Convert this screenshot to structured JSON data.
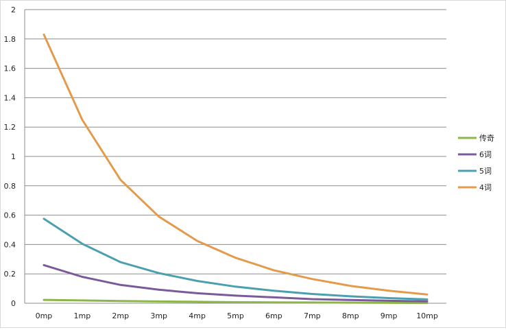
{
  "chart_data": {
    "type": "line",
    "title": "",
    "xlabel": "",
    "ylabel": "",
    "ylim": [
      0,
      2
    ],
    "yticks": [
      "0",
      "0.2",
      "0.4",
      "0.6",
      "0.8",
      "1",
      "1.2",
      "1.4",
      "1.6",
      "1.8",
      "2"
    ],
    "grid": true,
    "legend_position": "right",
    "categories": [
      "0mp",
      "1mp",
      "2mp",
      "3mp",
      "4mp",
      "5mp",
      "6mp",
      "7mp",
      "8mp",
      "9mp",
      "10mp"
    ],
    "series": [
      {
        "name": "传奇",
        "color": "#8db64a",
        "values": [
          0.023,
          0.019,
          0.015,
          0.012,
          0.01,
          0.007,
          0.006,
          0.005,
          0.004,
          0.003,
          0.002
        ]
      },
      {
        "name": "6词",
        "color": "#7b5a9b",
        "values": [
          0.26,
          0.18,
          0.125,
          0.092,
          0.068,
          0.052,
          0.04,
          0.028,
          0.022,
          0.017,
          0.013
        ]
      },
      {
        "name": "5词",
        "color": "#4aa0b0",
        "values": [
          0.575,
          0.405,
          0.28,
          0.205,
          0.152,
          0.113,
          0.085,
          0.063,
          0.047,
          0.035,
          0.026
        ]
      },
      {
        "name": "4词",
        "color": "#e39b4b",
        "values": [
          1.83,
          1.25,
          0.84,
          0.59,
          0.425,
          0.31,
          0.225,
          0.165,
          0.118,
          0.085,
          0.06
        ]
      }
    ],
    "legend_order": [
      0,
      1,
      2,
      3
    ]
  }
}
